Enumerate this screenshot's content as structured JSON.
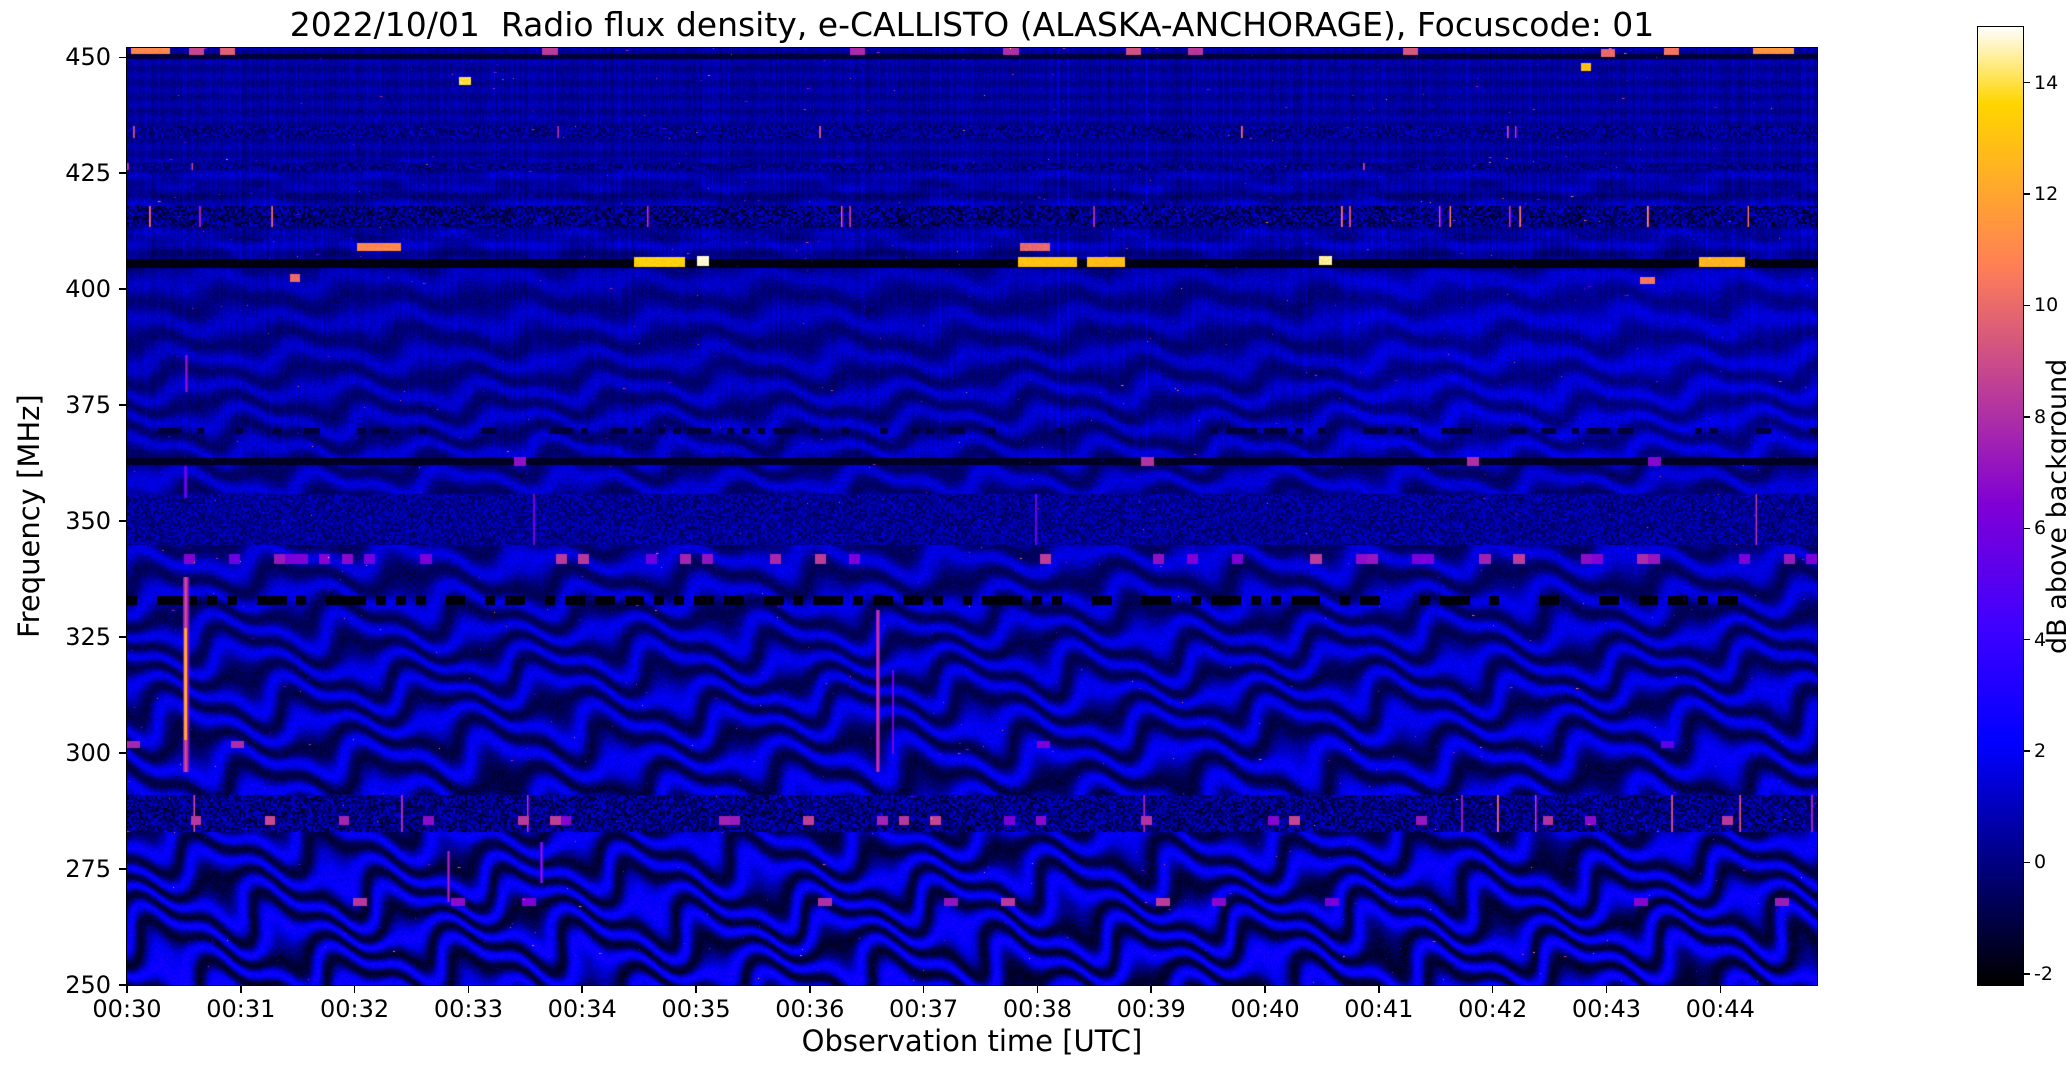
{
  "figure": {
    "title": "2022/10/01  Radio flux density, e-CALLISTO (ALASKA-ANCHORAGE), Focuscode: 01",
    "xlabel": "Observation time [UTC]",
    "ylabel": "Frequency [MHz]",
    "colorbar_label": "dB above background",
    "background_color": "#ffffff"
  },
  "chart_data": {
    "type": "heatmap",
    "subtype": "radio-spectrogram",
    "title": "2022/10/01  Radio flux density, e-CALLISTO (ALASKA-ANCHORAGE), Focuscode: 01",
    "xlabel": "Observation time [UTC]",
    "ylabel": "Frequency [MHz]",
    "grid": false,
    "x_tick_labels": [
      "00:30",
      "00:31",
      "00:32",
      "00:33",
      "00:34",
      "00:35",
      "00:36",
      "00:37",
      "00:38",
      "00:39",
      "00:40",
      "00:41",
      "00:42",
      "00:43",
      "00:44"
    ],
    "x_tick_minutes": [
      0,
      1,
      2,
      3,
      4,
      5,
      6,
      7,
      8,
      9,
      10,
      11,
      12,
      13,
      14
    ],
    "x_range_minutes": [
      0,
      14.85
    ],
    "y_tick_values": [
      250,
      275,
      300,
      325,
      350,
      375,
      400,
      425,
      450
    ],
    "y_range_mhz": [
      250,
      452
    ],
    "colorbar": {
      "label": "dB above background",
      "tick_values": [
        -2,
        0,
        2,
        4,
        6,
        8,
        10,
        12,
        14
      ],
      "value_range": [
        -2.2,
        15.0
      ],
      "colormap_name": "gnuplot2",
      "colormap_stops": [
        {
          "u": 0.0,
          "hex": "#000000"
        },
        {
          "u": 0.125,
          "hex": "#000080"
        },
        {
          "u": 0.25,
          "hex": "#0000ff"
        },
        {
          "u": 0.375,
          "hex": "#4000ff"
        },
        {
          "u": 0.5,
          "hex": "#8000d6"
        },
        {
          "u": 0.625,
          "hex": "#bf4096"
        },
        {
          "u": 0.75,
          "hex": "#ff8057"
        },
        {
          "u": 0.875,
          "hex": "#ffbf17"
        },
        {
          "u": 0.92,
          "hex": "#ffd600"
        },
        {
          "u": 0.96,
          "hex": "#ffeb80"
        },
        {
          "u": 1.0,
          "hex": "#ffffff"
        }
      ]
    },
    "spectrogram_model": {
      "background_level_db": 0.45,
      "noise_db": 0.6,
      "band_period_mhz": 7.4,
      "band_amp_max": 1.7,
      "band_fade_top_mhz": 430,
      "dark_lines": [
        {
          "f": 405.6,
          "w": 1.0,
          "v": -1.9
        },
        {
          "f": 363.0,
          "w": 0.7,
          "v": -1.6
        },
        {
          "f": 450.3,
          "w": 0.5,
          "v": -1.2
        }
      ],
      "static_bands": [
        {
          "f0": 413.5,
          "f1": 418.0,
          "base": -0.1,
          "contrast": 1.7,
          "spark": 0.012,
          "spark_v": 9
        },
        {
          "f0": 425.8,
          "f1": 427.3,
          "base": 0.1,
          "contrast": 1.1,
          "spark": 0.004,
          "spark_v": 7
        },
        {
          "f0": 432.8,
          "f1": 435.2,
          "base": 0.2,
          "contrast": 1.2,
          "spark": 0.01,
          "spark_v": 8
        },
        {
          "f0": 345.0,
          "f1": 356.0,
          "base": 0.3,
          "contrast": 1.1,
          "spark": 0.003,
          "spark_v": 7
        },
        {
          "f0": 283.0,
          "f1": 291.0,
          "base": 0.0,
          "contrast": 1.6,
          "spark": 0.012,
          "spark_v": 8
        }
      ],
      "dotted_lines": [
        {
          "f": 333.0,
          "w": 0.9,
          "n": 170,
          "duty": 0.55,
          "v": -2.0
        },
        {
          "f": 369.5,
          "w": 0.6,
          "n": 220,
          "duty": 0.35,
          "v": -1.2
        }
      ],
      "dash_rows": [
        {
          "f": 342.0,
          "w": 1.1,
          "n": 150,
          "density": 0.16,
          "v": 7.0
        },
        {
          "f": 285.5,
          "w": 1.0,
          "n": 160,
          "density": 0.1,
          "v": 7.5
        },
        {
          "f": 363.0,
          "w": 0.9,
          "n": 140,
          "density": 0.07,
          "v": 8.0
        },
        {
          "f": 268.0,
          "w": 0.9,
          "n": 120,
          "density": 0.06,
          "v": 7.0
        },
        {
          "f": 451.5,
          "w": 0.8,
          "n": 110,
          "density": 0.05,
          "v": 9.0
        },
        {
          "f": 302.0,
          "w": 0.8,
          "n": 130,
          "density": 0.04,
          "v": 6.5
        }
      ],
      "bright_segments": [
        {
          "f": 406.0,
          "w": 1.1,
          "t0": 0.3,
          "t1": 0.33,
          "v": 13.5
        },
        {
          "f": 406.2,
          "w": 1.0,
          "t0": 0.337,
          "t1": 0.344,
          "v": 14.8
        },
        {
          "f": 406.0,
          "w": 1.1,
          "t0": 0.527,
          "t1": 0.562,
          "v": 13.0
        },
        {
          "f": 406.0,
          "w": 1.1,
          "t0": 0.568,
          "t1": 0.59,
          "v": 12.8
        },
        {
          "f": 406.3,
          "w": 0.9,
          "t0": 0.705,
          "t1": 0.713,
          "v": 14.5
        },
        {
          "f": 406.0,
          "w": 1.0,
          "t0": 0.93,
          "t1": 0.957,
          "v": 12.5
        },
        {
          "f": 409.2,
          "w": 0.9,
          "t0": 0.136,
          "t1": 0.162,
          "v": 11.0
        },
        {
          "f": 409.2,
          "w": 0.8,
          "t0": 0.528,
          "t1": 0.546,
          "v": 10.0
        },
        {
          "f": 402.5,
          "w": 0.8,
          "t0": 0.096,
          "t1": 0.102,
          "v": 10.0
        },
        {
          "f": 402.0,
          "w": 0.8,
          "t0": 0.895,
          "t1": 0.904,
          "v": 10.5
        },
        {
          "f": 451.8,
          "w": 1.0,
          "t0": 0.002,
          "t1": 0.025,
          "v": 11.0
        },
        {
          "f": 451.8,
          "w": 0.9,
          "t0": 0.962,
          "t1": 0.986,
          "v": 11.5
        },
        {
          "f": 445.0,
          "w": 0.8,
          "t0": 0.196,
          "t1": 0.203,
          "v": 14.0
        },
        {
          "f": 448.0,
          "w": 0.8,
          "t0": 0.86,
          "t1": 0.866,
          "v": 13.0
        },
        {
          "f": 451.0,
          "w": 0.8,
          "t0": 0.872,
          "t1": 0.88,
          "v": 10.0
        }
      ],
      "vertical_flares": [
        {
          "t": 0.0345,
          "dt": 0.0016,
          "f0": 296,
          "f1": 338,
          "v": 9.5
        },
        {
          "t": 0.0345,
          "dt": 0.001,
          "f0": 303,
          "f1": 327,
          "v": 13.5
        },
        {
          "t": 0.0345,
          "dt": 0.001,
          "f0": 355,
          "f1": 362,
          "v": 7.0
        },
        {
          "t": 0.0348,
          "dt": 0.001,
          "f0": 378,
          "f1": 386,
          "v": 7.5
        },
        {
          "t": 0.444,
          "dt": 0.0013,
          "f0": 296,
          "f1": 331,
          "v": 9.0
        },
        {
          "t": 0.453,
          "dt": 0.0008,
          "f0": 300,
          "f1": 318,
          "v": 7.0
        },
        {
          "t": 0.19,
          "dt": 0.001,
          "f0": 268,
          "f1": 279,
          "v": 8.0
        },
        {
          "t": 0.245,
          "dt": 0.0008,
          "f0": 272,
          "f1": 281,
          "v": 7.5
        }
      ],
      "patches": [
        {
          "t0": 0.72,
          "t1": 1.0,
          "f0": 364,
          "f1": 404,
          "dv": 0.3
        }
      ],
      "hot_pixels": {
        "count": 220,
        "rows": [
          452,
          445,
          440,
          434,
          427,
          420,
          415,
          409,
          400,
          380,
          363,
          353,
          342,
          330,
          315,
          300,
          290,
          285,
          275,
          268,
          258
        ],
        "v_min": 5,
        "v_max": 12
      }
    }
  }
}
